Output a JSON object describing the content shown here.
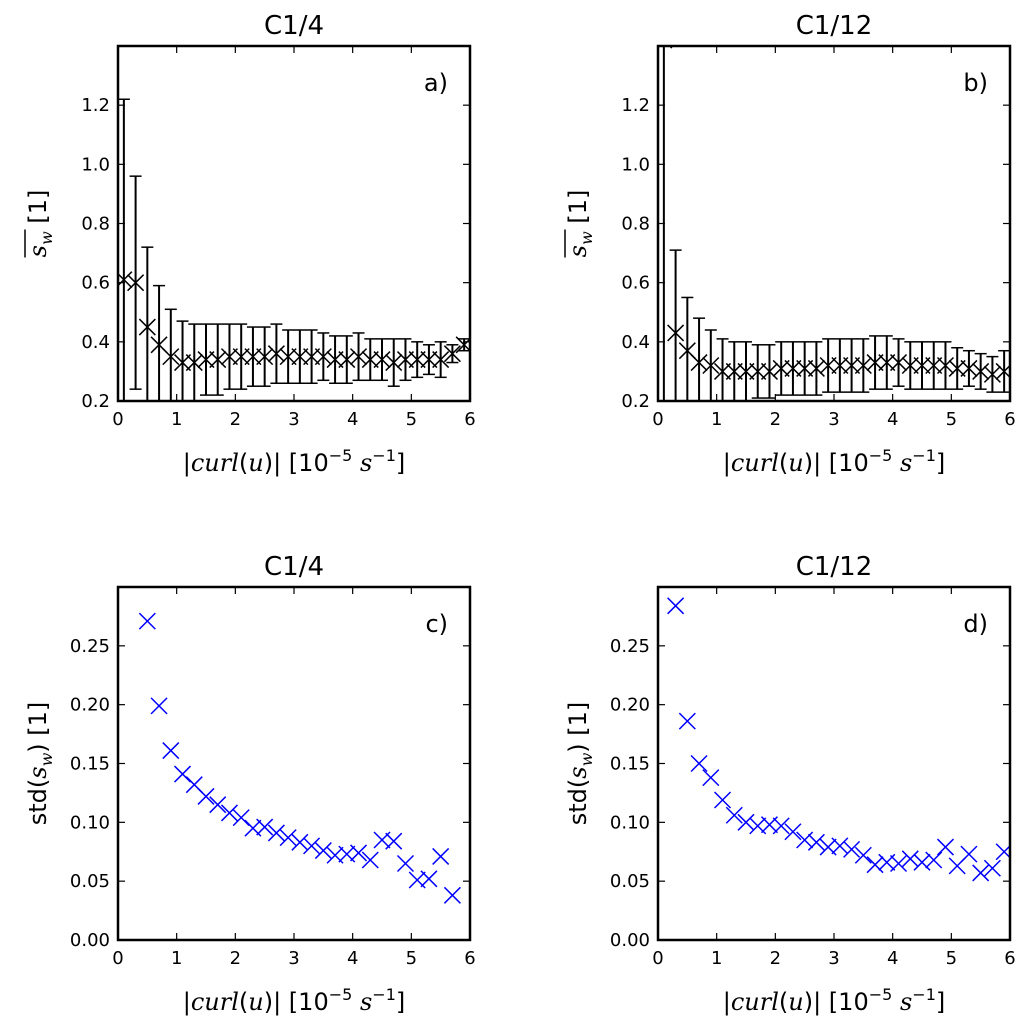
{
  "chart_data": [
    {
      "type": "scatter",
      "title": "C1/4",
      "panel_label": "a)",
      "xlabel": "|curl(u)| [10^-5 s^-1]",
      "ylabel": "s_w (mean) [1]",
      "xlim": [
        0,
        6
      ],
      "ylim": [
        0.2,
        1.4
      ],
      "xticks": [
        "0",
        "1",
        "2",
        "3",
        "4",
        "5",
        "6"
      ],
      "yticks": [
        "0.2",
        "0.4",
        "0.6",
        "0.8",
        "1.0",
        "1.2"
      ],
      "marker": "x",
      "color": "#000000",
      "error_bars": true,
      "x": [
        0.1,
        0.3,
        0.5,
        0.7,
        0.9,
        1.1,
        1.3,
        1.5,
        1.7,
        1.9,
        2.1,
        2.3,
        2.5,
        2.7,
        2.9,
        3.1,
        3.3,
        3.5,
        3.7,
        3.9,
        4.1,
        4.3,
        4.5,
        4.7,
        4.9,
        5.1,
        5.3,
        5.5,
        5.7,
        5.9
      ],
      "y": [
        0.61,
        0.6,
        0.45,
        0.39,
        0.35,
        0.33,
        0.33,
        0.34,
        0.34,
        0.35,
        0.35,
        0.35,
        0.35,
        0.36,
        0.35,
        0.35,
        0.35,
        0.35,
        0.34,
        0.34,
        0.35,
        0.34,
        0.34,
        0.33,
        0.34,
        0.34,
        0.34,
        0.34,
        0.36,
        0.39
      ],
      "yerr": [
        0.61,
        0.36,
        0.27,
        0.2,
        0.16,
        0.14,
        0.13,
        0.12,
        0.12,
        0.11,
        0.11,
        0.1,
        0.1,
        0.1,
        0.09,
        0.09,
        0.09,
        0.08,
        0.08,
        0.08,
        0.08,
        0.07,
        0.07,
        0.08,
        0.07,
        0.06,
        0.05,
        0.06,
        0.03,
        0.02
      ]
    },
    {
      "type": "scatter",
      "title": "C1/12",
      "panel_label": "b)",
      "xlabel": "|curl(u)| [10^-5 s^-1]",
      "ylabel": "s_w (mean) [1]",
      "xlim": [
        0,
        6
      ],
      "ylim": [
        0.2,
        1.4
      ],
      "xticks": [
        "0",
        "1",
        "2",
        "3",
        "4",
        "5",
        "6"
      ],
      "yticks": [
        "0.2",
        "0.4",
        "0.6",
        "0.8",
        "1.0",
        "1.2"
      ],
      "marker": "x",
      "color": "#000000",
      "error_bars": true,
      "x": [
        0.1,
        0.3,
        0.5,
        0.7,
        0.9,
        1.1,
        1.3,
        1.5,
        1.7,
        1.9,
        2.1,
        2.3,
        2.5,
        2.7,
        2.9,
        3.1,
        3.3,
        3.5,
        3.7,
        3.9,
        4.1,
        4.3,
        4.5,
        4.7,
        4.9,
        5.1,
        5.3,
        5.5,
        5.7,
        5.9
      ],
      "y": [
        1.42,
        0.43,
        0.37,
        0.33,
        0.32,
        0.3,
        0.3,
        0.3,
        0.3,
        0.3,
        0.31,
        0.31,
        0.31,
        0.31,
        0.32,
        0.32,
        0.32,
        0.32,
        0.33,
        0.33,
        0.33,
        0.32,
        0.32,
        0.32,
        0.32,
        0.31,
        0.31,
        0.3,
        0.29,
        0.3
      ],
      "yerr": [
        1.5,
        0.28,
        0.18,
        0.15,
        0.12,
        0.11,
        0.1,
        0.1,
        0.09,
        0.09,
        0.09,
        0.09,
        0.09,
        0.09,
        0.09,
        0.09,
        0.09,
        0.09,
        0.09,
        0.09,
        0.08,
        0.08,
        0.08,
        0.08,
        0.08,
        0.07,
        0.06,
        0.06,
        0.06,
        0.07
      ]
    },
    {
      "type": "scatter",
      "title": "C1/4",
      "panel_label": "c)",
      "xlabel": "|curl(u)| [10^-5 s^-1]",
      "ylabel": "std(s_w) [1]",
      "xlim": [
        0,
        6
      ],
      "ylim": [
        0.0,
        0.3
      ],
      "xticks": [
        "0",
        "1",
        "2",
        "3",
        "4",
        "5",
        "6"
      ],
      "yticks": [
        "0.00",
        "0.05",
        "0.10",
        "0.15",
        "0.20",
        "0.25"
      ],
      "marker": "x",
      "color": "#0000ff",
      "error_bars": false,
      "x": [
        0.5,
        0.7,
        0.9,
        1.1,
        1.3,
        1.5,
        1.7,
        1.9,
        2.1,
        2.3,
        2.5,
        2.7,
        2.9,
        3.1,
        3.3,
        3.5,
        3.7,
        3.9,
        4.1,
        4.3,
        4.5,
        4.7,
        4.9,
        5.1,
        5.3,
        5.5,
        5.7
      ],
      "y": [
        0.271,
        0.199,
        0.161,
        0.141,
        0.132,
        0.122,
        0.115,
        0.108,
        0.104,
        0.095,
        0.096,
        0.091,
        0.087,
        0.083,
        0.08,
        0.076,
        0.072,
        0.073,
        0.074,
        0.068,
        0.085,
        0.084,
        0.065,
        0.051,
        0.052,
        0.071,
        0.038
      ]
    },
    {
      "type": "scatter",
      "title": "C1/12",
      "panel_label": "d)",
      "xlabel": "|curl(u)| [10^-5 s^-1]",
      "ylabel": "std(s_w) [1]",
      "xlim": [
        0,
        6
      ],
      "ylim": [
        0.0,
        0.3
      ],
      "xticks": [
        "0",
        "1",
        "2",
        "3",
        "4",
        "5",
        "6"
      ],
      "yticks": [
        "0.00",
        "0.05",
        "0.10",
        "0.15",
        "0.20",
        "0.25"
      ],
      "marker": "x",
      "color": "#0000ff",
      "error_bars": false,
      "x": [
        0.3,
        0.5,
        0.7,
        0.9,
        1.1,
        1.3,
        1.5,
        1.7,
        1.9,
        2.1,
        2.3,
        2.5,
        2.7,
        2.9,
        3.1,
        3.3,
        3.5,
        3.7,
        3.9,
        4.1,
        4.3,
        4.5,
        4.7,
        4.9,
        5.1,
        5.3,
        5.5,
        5.7,
        5.9
      ],
      "y": [
        0.284,
        0.186,
        0.15,
        0.138,
        0.119,
        0.106,
        0.1,
        0.097,
        0.098,
        0.097,
        0.092,
        0.085,
        0.083,
        0.079,
        0.08,
        0.077,
        0.072,
        0.064,
        0.066,
        0.065,
        0.069,
        0.066,
        0.068,
        0.079,
        0.063,
        0.073,
        0.057,
        0.061,
        0.075
      ]
    }
  ]
}
